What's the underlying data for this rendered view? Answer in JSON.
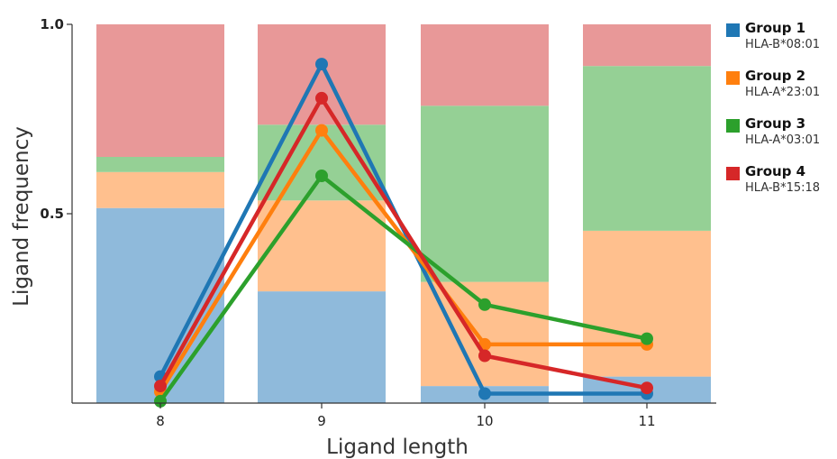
{
  "chart_data": {
    "type": "bar",
    "subtype": "stacked-bar-with-line-overlay",
    "xlabel": "Ligand length",
    "ylabel": "Ligand frequency",
    "ylim": [
      0,
      1.0
    ],
    "y_ticks": [
      {
        "value": 0.5,
        "label": "0.5"
      },
      {
        "value": 1.0,
        "label": "1.0"
      }
    ],
    "categories": [
      "8",
      "9",
      "10",
      "11"
    ],
    "grid": false,
    "legend_position": "right",
    "stacked_bars": {
      "segment_order_bottom_to_top": [
        "Group 1",
        "Group 2",
        "Group 3",
        "Group 4"
      ],
      "segments": [
        {
          "name": "Group 1",
          "color": "#8fbadb",
          "values": [
            0.515,
            0.295,
            0.045,
            0.07
          ]
        },
        {
          "name": "Group 2",
          "color": "#ffc08e",
          "values": [
            0.095,
            0.24,
            0.275,
            0.385
          ]
        },
        {
          "name": "Group 3",
          "color": "#95d095",
          "values": [
            0.04,
            0.2,
            0.465,
            0.435
          ]
        },
        {
          "name": "Group 4",
          "color": "#e89898",
          "values": [
            0.35,
            0.265,
            0.215,
            0.11
          ]
        }
      ]
    },
    "series": [
      {
        "name": "Group 1",
        "allele": "HLA-B*08:01",
        "color": "#1f77b4",
        "values": [
          0.07,
          0.895,
          0.025,
          0.025
        ]
      },
      {
        "name": "Group 2",
        "allele": "HLA-A*23:01",
        "color": "#ff7f0e",
        "values": [
          0.03,
          0.72,
          0.155,
          0.155
        ]
      },
      {
        "name": "Group 3",
        "allele": "HLA-A*03:01",
        "color": "#2ca02c",
        "values": [
          0.005,
          0.6,
          0.26,
          0.17
        ]
      },
      {
        "name": "Group 4",
        "allele": "HLA-B*15:18",
        "color": "#d62728",
        "values": [
          0.045,
          0.805,
          0.125,
          0.04
        ]
      }
    ]
  }
}
